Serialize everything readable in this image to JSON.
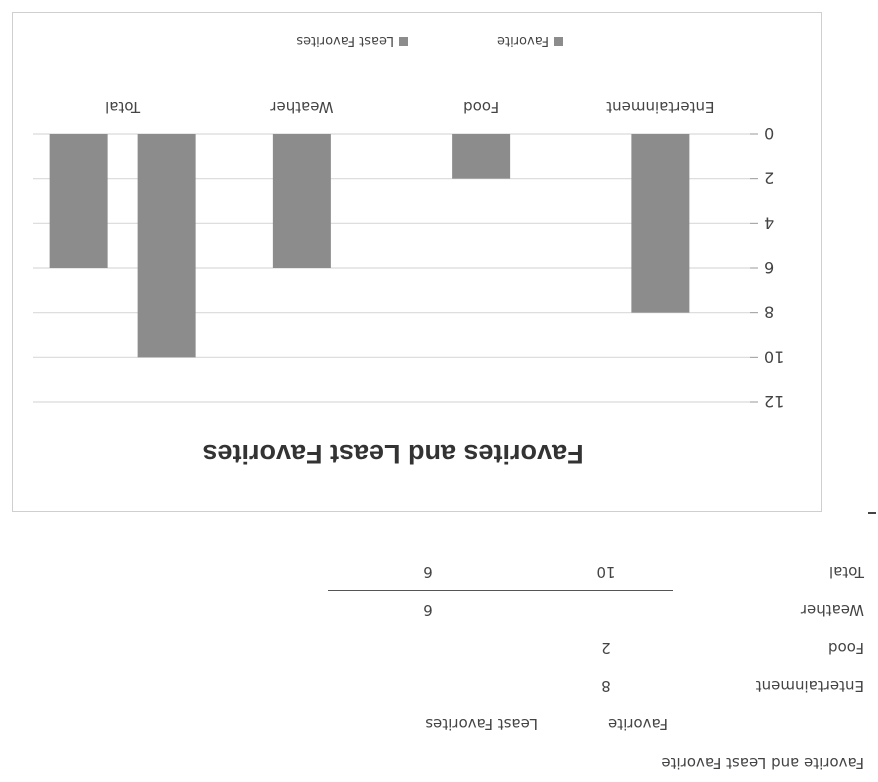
{
  "table": {
    "title": "Favorite and Least Favorite",
    "headers": [
      "Favorite",
      "Least Favorites"
    ],
    "rows": [
      {
        "label": "Entertainment",
        "favorite": "8",
        "least": ""
      },
      {
        "label": "Food",
        "favorite": "2",
        "least": ""
      },
      {
        "label": "Weather",
        "favorite": "",
        "least": "6"
      },
      {
        "label": "Total",
        "favorite": "10",
        "least": "6"
      }
    ]
  },
  "chart_data": {
    "type": "bar",
    "title": "Favorites and Least Favorites",
    "categories": [
      "Entertainment",
      "Food",
      "Weather",
      "Total"
    ],
    "series": [
      {
        "name": "Favorite",
        "values": [
          8,
          2,
          null,
          10
        ],
        "color": "#8c8c8c"
      },
      {
        "name": "Least Favorites",
        "values": [
          null,
          null,
          6,
          6
        ],
        "color": "#8c8c8c"
      }
    ],
    "ylim": [
      0,
      12
    ],
    "yticks": [
      "0",
      "2",
      "4",
      "6",
      "8",
      "10",
      "12"
    ],
    "grid": true,
    "legend": "bottom"
  },
  "colors": {
    "bar": "#8c8c8c",
    "grid": "#d9d9d9",
    "text": "#444444"
  }
}
